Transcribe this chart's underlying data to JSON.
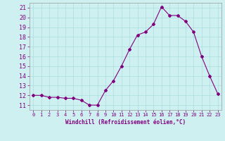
{
  "x": [
    0,
    1,
    2,
    3,
    4,
    5,
    6,
    7,
    8,
    9,
    10,
    11,
    12,
    13,
    14,
    15,
    16,
    17,
    18,
    19,
    20,
    21,
    22,
    23
  ],
  "y": [
    12,
    12,
    11.8,
    11.8,
    11.7,
    11.7,
    11.5,
    11,
    11,
    12.5,
    13.5,
    15,
    16.7,
    18.2,
    18.5,
    19.3,
    21.1,
    20.2,
    20.2,
    19.6,
    18.5,
    16,
    14,
    12.2
  ],
  "line_color": "#800080",
  "marker": "D",
  "marker_size": 2,
  "bg_color": "#cff0f0",
  "grid_color": "#aadddd",
  "xlabel": "Windchill (Refroidissement éolien,°C)",
  "xlabel_color": "#800080",
  "tick_color": "#800080",
  "ylim": [
    10.5,
    21.5
  ],
  "xlim": [
    -0.5,
    23.5
  ],
  "yticks": [
    11,
    12,
    13,
    14,
    15,
    16,
    17,
    18,
    19,
    20,
    21
  ],
  "xticks": [
    0,
    1,
    2,
    3,
    4,
    5,
    6,
    7,
    8,
    9,
    10,
    11,
    12,
    13,
    14,
    15,
    16,
    17,
    18,
    19,
    20,
    21,
    22,
    23
  ]
}
